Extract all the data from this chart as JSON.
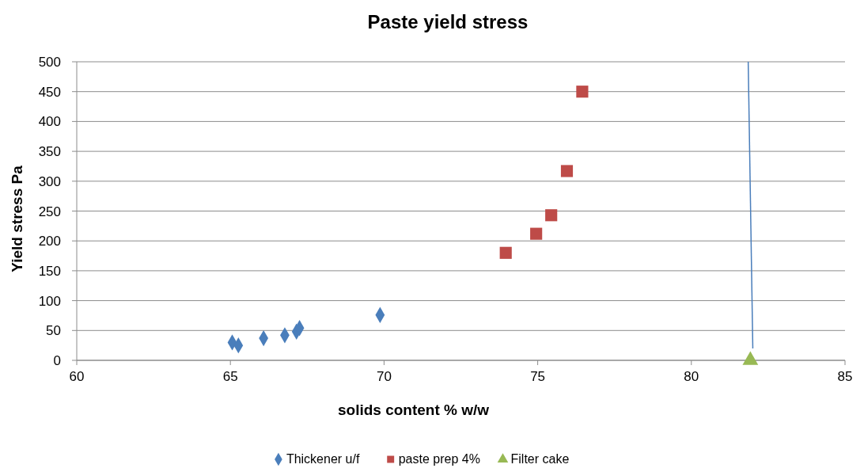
{
  "chart_data": {
    "type": "scatter",
    "title": "Paste yield stress",
    "xlabel": "solids content % w/w",
    "ylabel": "Yield stress Pa",
    "xlim": [
      60,
      85
    ],
    "xticks": [
      60,
      65,
      70,
      75,
      80,
      85
    ],
    "ylim": [
      0,
      500
    ],
    "yticks": [
      0,
      50,
      100,
      150,
      200,
      250,
      300,
      350,
      400,
      450,
      500
    ],
    "grid": "y",
    "legend": "bottom",
    "series": [
      {
        "name": "Thickener u/f",
        "color": "#4a7ebb",
        "marker": "diamond",
        "x": [
          65.06,
          65.26,
          66.08,
          66.77,
          67.15,
          67.25,
          69.87
        ],
        "values": [
          30,
          25,
          37,
          42,
          48,
          54,
          76
        ]
      },
      {
        "name": "paste prep 4%",
        "color": "#be4b48",
        "marker": "square",
        "x": [
          73.96,
          74.95,
          75.44,
          75.95,
          76.45
        ],
        "values": [
          180,
          212,
          243,
          317,
          450
        ]
      },
      {
        "name": "Filter cake",
        "color": "#98b954",
        "marker": "triangle",
        "x": [
          81.92
        ],
        "values": [
          0
        ]
      },
      {
        "type": "line",
        "color": "#4a7ebb",
        "marker": "none",
        "x": [
          81.85,
          82.0
        ],
        "values": [
          500,
          20
        ]
      }
    ]
  }
}
